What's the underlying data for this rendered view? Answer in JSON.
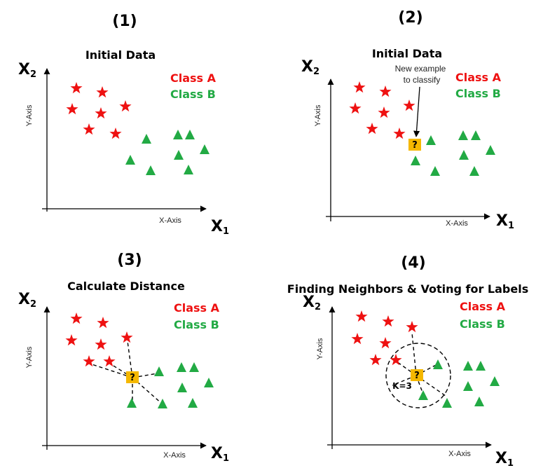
{
  "colors": {
    "class_a": "#ee1111",
    "class_b": "#22aa44",
    "query": "#f5b800"
  },
  "panels": [
    {
      "number": "(1)",
      "subtitle": "Initial Data",
      "y_axis_name": "X",
      "y_axis_sub": "2",
      "x_axis_name": "X",
      "x_axis_sub": "1",
      "y_axis_label": "Y-Axis",
      "x_axis_label": "X-Axis",
      "legend_a": "Class A",
      "legend_b": "Class B"
    },
    {
      "number": "(2)",
      "subtitle": "Initial Data",
      "y_axis_name": "X",
      "y_axis_sub": "2",
      "x_axis_name": "X",
      "x_axis_sub": "1",
      "y_axis_label": "Y-Axis",
      "x_axis_label": "X-Axis",
      "legend_a": "Class A",
      "legend_b": "Class B",
      "annotation_line1": "New example",
      "annotation_line2": "to classify",
      "query_mark": "?"
    },
    {
      "number": "(3)",
      "subtitle": "Calculate Distance",
      "y_axis_name": "X",
      "y_axis_sub": "2",
      "x_axis_name": "X",
      "x_axis_sub": "1",
      "y_axis_label": "Y-Axis",
      "x_axis_label": "X-Axis",
      "legend_a": "Class A",
      "legend_b": "Class B",
      "query_mark": "?"
    },
    {
      "number": "(4)",
      "subtitle": "Finding Neighbors & Voting for Labels",
      "y_axis_name": "X",
      "y_axis_sub": "2",
      "x_axis_name": "X",
      "x_axis_sub": "1",
      "y_axis_label": "Y-Axis",
      "x_axis_label": "X-Axis",
      "legend_a": "Class A",
      "legend_b": "Class B",
      "query_mark": "?",
      "k_label": "K=3"
    }
  ]
}
